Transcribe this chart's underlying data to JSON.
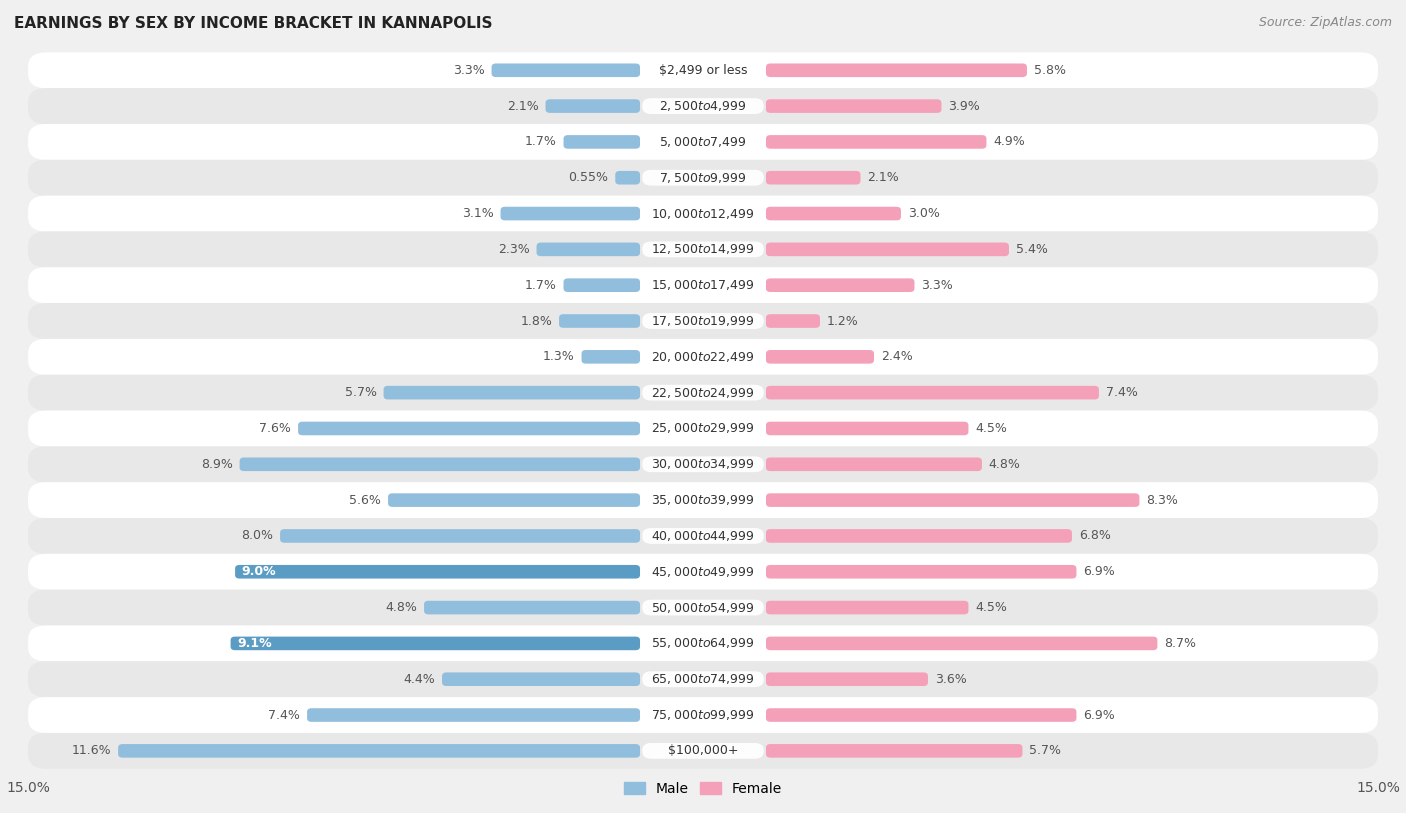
{
  "title": "EARNINGS BY SEX BY INCOME BRACKET IN KANNAPOLIS",
  "source": "Source: ZipAtlas.com",
  "categories": [
    "$2,499 or less",
    "$2,500 to $4,999",
    "$5,000 to $7,499",
    "$7,500 to $9,999",
    "$10,000 to $12,499",
    "$12,500 to $14,999",
    "$15,000 to $17,499",
    "$17,500 to $19,999",
    "$20,000 to $22,499",
    "$22,500 to $24,999",
    "$25,000 to $29,999",
    "$30,000 to $34,999",
    "$35,000 to $39,999",
    "$40,000 to $44,999",
    "$45,000 to $49,999",
    "$50,000 to $54,999",
    "$55,000 to $64,999",
    "$65,000 to $74,999",
    "$75,000 to $99,999",
    "$100,000+"
  ],
  "male": [
    3.3,
    2.1,
    1.7,
    0.55,
    3.1,
    2.3,
    1.7,
    1.8,
    1.3,
    5.7,
    7.6,
    8.9,
    5.6,
    8.0,
    9.0,
    4.8,
    9.1,
    4.4,
    7.4,
    11.6
  ],
  "female": [
    5.8,
    3.9,
    4.9,
    2.1,
    3.0,
    5.4,
    3.3,
    1.2,
    2.4,
    7.4,
    4.5,
    4.8,
    8.3,
    6.8,
    6.9,
    4.5,
    8.7,
    3.6,
    6.9,
    5.7
  ],
  "male_color": "#92bedd",
  "female_color": "#f4a0b8",
  "highlight_male_indices": [
    14,
    16
  ],
  "highlight_male_color": "#5b9cc4",
  "bar_height": 0.38,
  "xlim": 15.0,
  "bg_color": "#f0f0f0",
  "row_color_even": "#ffffff",
  "row_color_odd": "#e8e8e8",
  "center_label_bg": "#ffffff",
  "label_text_color": "#555555",
  "highlight_text_color": "#ffffff",
  "axis_fontsize": 10,
  "title_fontsize": 11,
  "source_fontsize": 9,
  "cat_fontsize": 9,
  "val_fontsize": 9
}
